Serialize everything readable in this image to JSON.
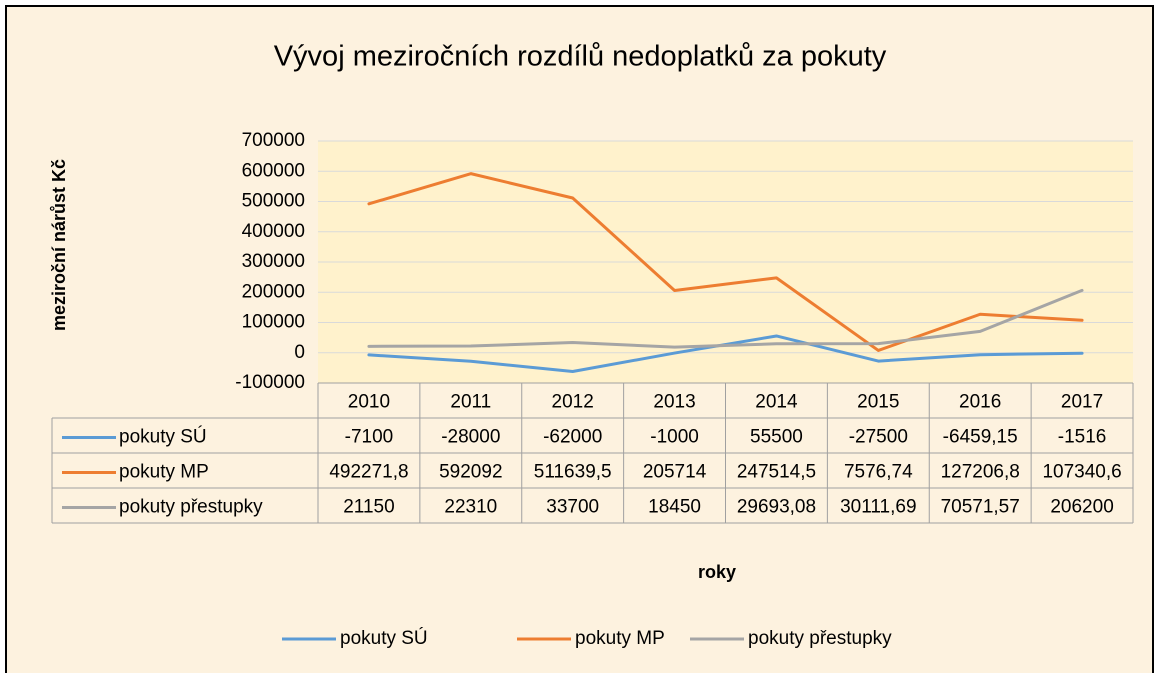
{
  "chart_data": {
    "type": "line",
    "title": "Vývoj meziročních rozdílů nedoplatků za pokuty",
    "y_label": "meziroční nárůst Kč",
    "x_label": "roky",
    "categories": [
      "2010",
      "2011",
      "2012",
      "2013",
      "2014",
      "2015",
      "2016",
      "2017"
    ],
    "series": [
      {
        "name": "pokuty SÚ",
        "color": "#5b9bd5",
        "values": [
          -7100,
          -28000,
          -62000,
          -1000,
          55500,
          -27500,
          -6459.15,
          -1516
        ],
        "value_labels": [
          "-7100",
          "-28000",
          "-62000",
          "-1000",
          "55500",
          "-27500",
          "-6459,15",
          "-1516"
        ]
      },
      {
        "name": "pokuty MP",
        "color": "#ed7d31",
        "values": [
          492271.8,
          592092,
          511639.5,
          205714,
          247514.5,
          7576.74,
          127206.8,
          107340.6
        ],
        "value_labels": [
          "492271,8",
          "592092",
          "511639,5",
          "205714",
          "247514,5",
          "7576,74",
          "127206,8",
          "107340,6"
        ]
      },
      {
        "name": "pokuty přestupky",
        "color": "#a5a5a5",
        "values": [
          21150,
          22310,
          33700,
          18450,
          29693.08,
          30111.69,
          70571.57,
          206200
        ],
        "value_labels": [
          "21150",
          "22310",
          "33700",
          "18450",
          "29693,08",
          "30111,69",
          "70571,57",
          "206200"
        ]
      }
    ],
    "ylim": [
      -100000,
      700000
    ],
    "yticks": [
      -100000,
      0,
      100000,
      200000,
      300000,
      400000,
      500000,
      600000,
      700000
    ],
    "grid": true,
    "data_table": true,
    "legend": "bottom"
  }
}
